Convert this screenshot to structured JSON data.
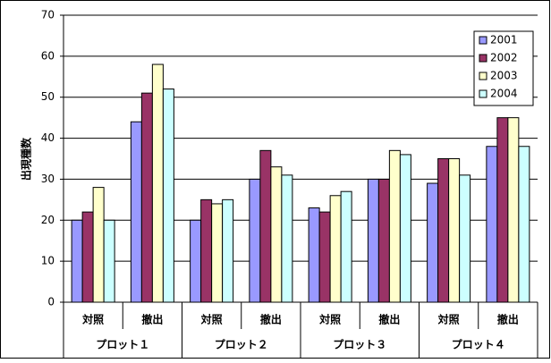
{
  "chart_data": {
    "type": "bar",
    "y_label": "出現種数",
    "categories": [
      "対照",
      "撤出",
      "対照",
      "撤出",
      "対照",
      "撤出",
      "対照",
      "撤出"
    ],
    "groups": [
      "プロット１",
      "プロット２",
      "プロット３",
      "プロット４"
    ],
    "series": [
      {
        "name": "2001",
        "color": "#9999ff",
        "values": [
          20,
          44,
          20,
          30,
          23,
          30,
          29,
          38
        ]
      },
      {
        "name": "2002",
        "color": "#993366",
        "values": [
          22,
          51,
          25,
          37,
          22,
          30,
          35,
          45
        ]
      },
      {
        "name": "2003",
        "color": "#ffffcc",
        "values": [
          28,
          58,
          24,
          33,
          26,
          37,
          35,
          45
        ]
      },
      {
        "name": "2004",
        "color": "#ccffff",
        "values": [
          20,
          52,
          25,
          31,
          27,
          36,
          31,
          38
        ]
      }
    ],
    "ylim": [
      0,
      70
    ],
    "yticks": [
      0,
      10,
      20,
      30,
      40,
      50,
      60,
      70
    ],
    "grid": true,
    "legend": "upper right"
  }
}
